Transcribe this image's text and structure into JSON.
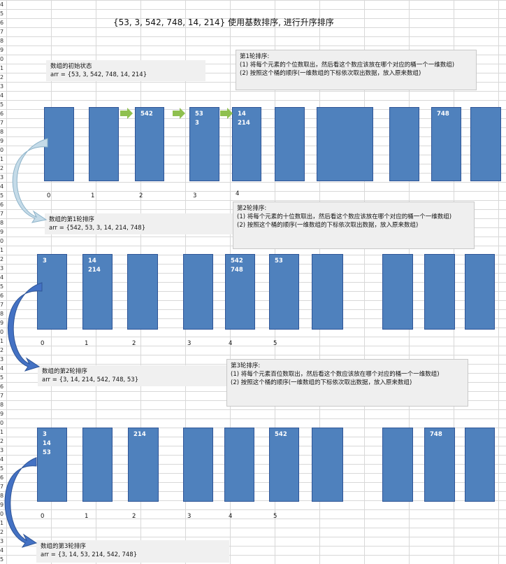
{
  "title": "{53, 3, 542, 748, 14, 214} 使用基数排序, 进行升序排序",
  "initial": {
    "label": "数组的初始状态",
    "arr": "arr = {53, 3, 542, 748, 14, 214}"
  },
  "rounds": [
    {
      "heading": "第1轮排序:",
      "step1": "(1) 将每个元素的个位数取出，然后看这个数应该放在哪个对应的桶一个一维数组)",
      "step2": "(2) 按照这个桶的顺序(一维数组的下标依次取出数据，放入原来数组)",
      "buckets": [
        [],
        [],
        [
          "542"
        ],
        [
          "53",
          "3"
        ],
        [
          "14",
          "214"
        ],
        [],
        [],
        [],
        [
          "748"
        ],
        []
      ],
      "indices": [
        "0",
        "1",
        "2",
        "3",
        "4"
      ],
      "result_label": "数组的第1轮排序",
      "result_arr": "arr = {542, 53, 3, 14, 214, 748}"
    },
    {
      "heading": "第2轮排序:",
      "step1": "(1) 将每个元素的十位数取出，然后看这个数应该放在哪个对应的桶一个一维数组)",
      "step2": "(2) 按照这个桶的顺序(一维数组的下标依次取出数据，放入原来数组)",
      "buckets": [
        [
          "3"
        ],
        [
          "14",
          "214"
        ],
        [],
        [],
        [
          "542",
          "748"
        ],
        [
          "53"
        ],
        [],
        [],
        [],
        []
      ],
      "indices": [
        "0",
        "1",
        "2",
        "3",
        "4",
        "5"
      ],
      "result_label": "数组的第2轮排序",
      "result_arr": "arr = {3, 14, 214, 542, 748, 53}"
    },
    {
      "heading": "第3轮排序:",
      "step1": "(1) 将每个元素百位数取出，然后看这个数应该放在哪个对应的桶一个一维数组)",
      "step2": "(2) 按照这个桶的顺序(一维数组的下标依次取出数据，放入原来数组)",
      "buckets": [
        [
          "3",
          "14",
          "53"
        ],
        [],
        [
          "214"
        ],
        [],
        [],
        [
          "542"
        ],
        [],
        [],
        [
          "748"
        ],
        []
      ],
      "indices": [
        "0",
        "1",
        "2",
        "3",
        "4",
        "5"
      ],
      "result_label": "数组的第3轮排序",
      "result_arr": "arr = {3, 14, 53, 214, 542, 748}"
    }
  ],
  "colors": {
    "bucket": "#4f81bd",
    "arrow_green": "#8fc04f",
    "arrow_blue": "#4472c4"
  }
}
